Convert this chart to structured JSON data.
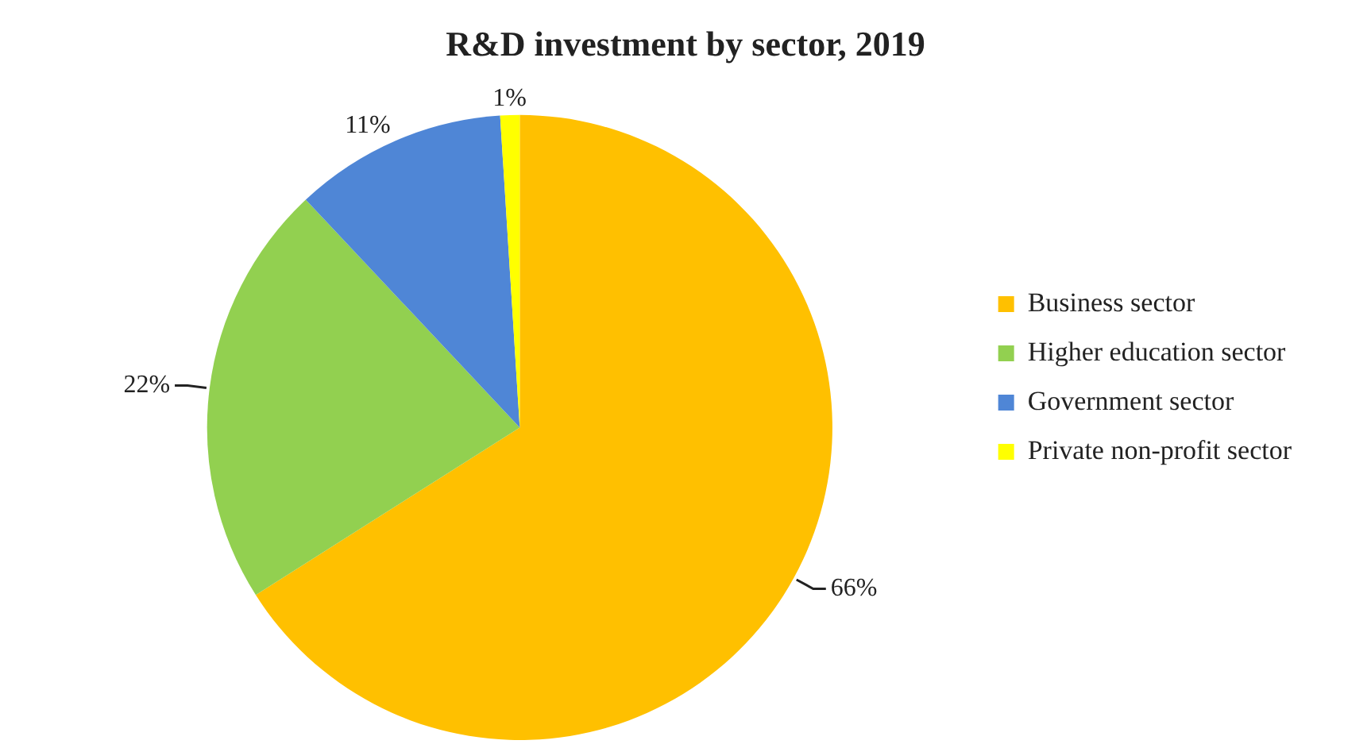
{
  "chart_data": {
    "type": "pie",
    "title": "R&D investment by sector, 2019",
    "categories": [
      "Business sector",
      "Higher education sector",
      "Government sector",
      "Private non-profit sector"
    ],
    "values": [
      66,
      22,
      11,
      1
    ],
    "colors": [
      "#ffc000",
      "#92d050",
      "#4f86d6",
      "#ffff00"
    ],
    "value_labels": [
      "66%",
      "22%",
      "11%",
      "1%"
    ],
    "legend": "right"
  }
}
